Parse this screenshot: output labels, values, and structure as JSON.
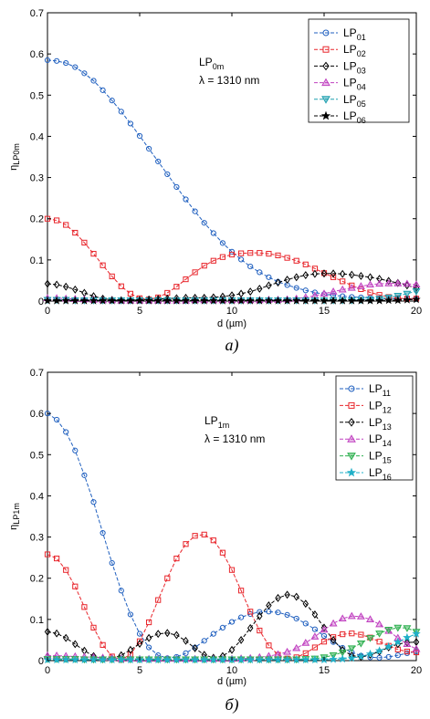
{
  "chart_data": [
    {
      "type": "line",
      "caption": "a)",
      "xlabel": "d (µm)",
      "ylabel": {
        "main": "η",
        "sub": "LP0m"
      },
      "annotation": {
        "line1_main": "LP",
        "line1_sub": "0m",
        "line2": "λ = 1310 nm"
      },
      "xlim": [
        0,
        20
      ],
      "ylim": [
        0,
        0.7
      ],
      "xticks": [
        "0",
        "5",
        "10",
        "15",
        "20"
      ],
      "yticks": [
        "0",
        "0.1",
        "0.2",
        "0.3",
        "0.4",
        "0.5",
        "0.6",
        "0.7"
      ],
      "grid": false,
      "legend_position": "top-right",
      "x": [
        0,
        0.5,
        1,
        1.5,
        2,
        2.5,
        3,
        3.5,
        4,
        4.5,
        5,
        5.5,
        6,
        6.5,
        7,
        7.5,
        8,
        8.5,
        9,
        9.5,
        10,
        10.5,
        11,
        11.5,
        12,
        12.5,
        13,
        13.5,
        14,
        14.5,
        15,
        15.5,
        16,
        16.5,
        17,
        17.5,
        18,
        18.5,
        19,
        19.5,
        20
      ],
      "series": [
        {
          "name_main": "LP",
          "name_sub": "01",
          "color": "#1f5fbf",
          "marker": "circle",
          "values": [
            0.585,
            0.583,
            0.578,
            0.568,
            0.553,
            0.535,
            0.512,
            0.487,
            0.46,
            0.431,
            0.401,
            0.37,
            0.339,
            0.308,
            0.277,
            0.247,
            0.218,
            0.19,
            0.165,
            0.141,
            0.12,
            0.101,
            0.084,
            0.07,
            0.058,
            0.047,
            0.039,
            0.032,
            0.026,
            0.021,
            0.017,
            0.014,
            0.012,
            0.01,
            0.009,
            0.008,
            0.007,
            0.006,
            0.006,
            0.005,
            0.005
          ]
        },
        {
          "name_main": "LP",
          "name_sub": "02",
          "color": "#e8252b",
          "marker": "square",
          "values": [
            0.2,
            0.196,
            0.185,
            0.166,
            0.142,
            0.115,
            0.087,
            0.06,
            0.036,
            0.018,
            0.007,
            0.004,
            0.009,
            0.02,
            0.035,
            0.053,
            0.07,
            0.086,
            0.098,
            0.107,
            0.113,
            0.116,
            0.117,
            0.117,
            0.115,
            0.111,
            0.105,
            0.098,
            0.089,
            0.079,
            0.068,
            0.058,
            0.048,
            0.038,
            0.029,
            0.021,
            0.015,
            0.01,
            0.007,
            0.006,
            0.006
          ]
        },
        {
          "name_main": "LP",
          "name_sub": "03",
          "color": "#000000",
          "marker": "diamond",
          "values": [
            0.042,
            0.04,
            0.035,
            0.028,
            0.02,
            0.012,
            0.006,
            0.003,
            0.002,
            0.002,
            0.003,
            0.004,
            0.005,
            0.006,
            0.007,
            0.008,
            0.008,
            0.008,
            0.009,
            0.011,
            0.014,
            0.018,
            0.023,
            0.03,
            0.038,
            0.045,
            0.052,
            0.058,
            0.063,
            0.066,
            0.067,
            0.067,
            0.066,
            0.064,
            0.061,
            0.058,
            0.054,
            0.049,
            0.044,
            0.038,
            0.032
          ]
        },
        {
          "name_main": "LP",
          "name_sub": "04",
          "color": "#c040c0",
          "marker": "triangle",
          "values": [
            0.007,
            0.007,
            0.006,
            0.005,
            0.004,
            0.003,
            0.002,
            0.002,
            0.001,
            0.001,
            0.001,
            0.001,
            0.001,
            0.001,
            0.001,
            0.001,
            0.002,
            0.002,
            0.002,
            0.002,
            0.002,
            0.002,
            0.002,
            0.002,
            0.003,
            0.003,
            0.004,
            0.006,
            0.009,
            0.013,
            0.018,
            0.023,
            0.028,
            0.032,
            0.036,
            0.04,
            0.042,
            0.043,
            0.043,
            0.042,
            0.04
          ]
        },
        {
          "name_main": "LP",
          "name_sub": "05",
          "color": "#1fa0b0",
          "marker": "triangle-down",
          "values": [
            0.003,
            0.003,
            0.003,
            0.002,
            0.002,
            0.002,
            0.002,
            0.002,
            0.002,
            0.002,
            0.002,
            0.002,
            0.002,
            0.002,
            0.002,
            0.002,
            0.002,
            0.002,
            0.002,
            0.002,
            0.002,
            0.002,
            0.002,
            0.002,
            0.002,
            0.002,
            0.002,
            0.002,
            0.002,
            0.002,
            0.002,
            0.002,
            0.002,
            0.002,
            0.003,
            0.004,
            0.006,
            0.009,
            0.013,
            0.018,
            0.024
          ]
        },
        {
          "name_main": "LP",
          "name_sub": "06",
          "color": "#000000",
          "marker": "star",
          "values": [
            0.001,
            0.001,
            0.001,
            0.001,
            0.001,
            0.001,
            0.001,
            0.001,
            0.001,
            0.001,
            0.001,
            0.001,
            0.001,
            0.001,
            0.001,
            0.001,
            0.001,
            0.001,
            0.001,
            0.001,
            0.001,
            0.001,
            0.001,
            0.001,
            0.001,
            0.001,
            0.001,
            0.001,
            0.001,
            0.001,
            0.001,
            0.001,
            0.001,
            0.001,
            0.001,
            0.001,
            0.001,
            0.002,
            0.002,
            0.003,
            0.004
          ]
        }
      ]
    },
    {
      "type": "line",
      "caption": "б)",
      "xlabel": "d (µm)",
      "ylabel": {
        "main": "η",
        "sub": "LP1m"
      },
      "annotation": {
        "line1_main": "LP",
        "line1_sub": "1m",
        "line2": "λ = 1310 nm"
      },
      "xlim": [
        0,
        20
      ],
      "ylim": [
        0,
        0.7
      ],
      "xticks": [
        "0",
        "5",
        "10",
        "15",
        "20"
      ],
      "yticks": [
        "0",
        "0.1",
        "0.2",
        "0.3",
        "0.4",
        "0.5",
        "0.6",
        "0.7"
      ],
      "grid": false,
      "legend_position": "top-right",
      "x": [
        0,
        0.5,
        1,
        1.5,
        2,
        2.5,
        3,
        3.5,
        4,
        4.5,
        5,
        5.5,
        6,
        6.5,
        7,
        7.5,
        8,
        8.5,
        9,
        9.5,
        10,
        10.5,
        11,
        11.5,
        12,
        12.5,
        13,
        13.5,
        14,
        14.5,
        15,
        15.5,
        16,
        16.5,
        17,
        17.5,
        18,
        18.5,
        19,
        19.5,
        20
      ],
      "series": [
        {
          "name_main": "LP",
          "name_sub": "11",
          "color": "#1f5fbf",
          "marker": "circle",
          "values": [
            0.6,
            0.585,
            0.555,
            0.51,
            0.45,
            0.385,
            0.31,
            0.237,
            0.17,
            0.112,
            0.065,
            0.032,
            0.013,
            0.006,
            0.009,
            0.018,
            0.032,
            0.048,
            0.065,
            0.08,
            0.094,
            0.105,
            0.113,
            0.118,
            0.119,
            0.117,
            0.111,
            0.102,
            0.09,
            0.076,
            0.06,
            0.045,
            0.031,
            0.02,
            0.012,
            0.008,
            0.007,
            0.009,
            0.013,
            0.018,
            0.022
          ]
        },
        {
          "name_main": "LP",
          "name_sub": "12",
          "color": "#e8252b",
          "marker": "square",
          "values": [
            0.258,
            0.248,
            0.22,
            0.18,
            0.13,
            0.08,
            0.038,
            0.01,
            0.002,
            0.015,
            0.047,
            0.093,
            0.147,
            0.2,
            0.248,
            0.283,
            0.303,
            0.306,
            0.292,
            0.262,
            0.22,
            0.17,
            0.119,
            0.073,
            0.037,
            0.014,
            0.005,
            0.008,
            0.018,
            0.032,
            0.046,
            0.057,
            0.064,
            0.066,
            0.063,
            0.056,
            0.046,
            0.036,
            0.027,
            0.022,
            0.02
          ]
        },
        {
          "name_main": "LP",
          "name_sub": "13",
          "color": "#000000",
          "marker": "diamond",
          "values": [
            0.07,
            0.066,
            0.055,
            0.04,
            0.024,
            0.011,
            0.004,
            0.005,
            0.013,
            0.026,
            0.041,
            0.055,
            0.065,
            0.067,
            0.062,
            0.048,
            0.03,
            0.014,
            0.007,
            0.011,
            0.026,
            0.05,
            0.079,
            0.108,
            0.134,
            0.152,
            0.16,
            0.155,
            0.138,
            0.112,
            0.08,
            0.05,
            0.026,
            0.012,
            0.009,
            0.014,
            0.022,
            0.032,
            0.04,
            0.044,
            0.045
          ]
        },
        {
          "name_main": "LP",
          "name_sub": "14",
          "color": "#c040c0",
          "marker": "triangle",
          "values": [
            0.012,
            0.012,
            0.011,
            0.01,
            0.009,
            0.008,
            0.007,
            0.006,
            0.005,
            0.005,
            0.004,
            0.004,
            0.004,
            0.004,
            0.004,
            0.004,
            0.004,
            0.004,
            0.004,
            0.004,
            0.004,
            0.005,
            0.006,
            0.008,
            0.011,
            0.015,
            0.021,
            0.03,
            0.043,
            0.058,
            0.075,
            0.09,
            0.102,
            0.108,
            0.107,
            0.1,
            0.088,
            0.072,
            0.055,
            0.04,
            0.028
          ]
        },
        {
          "name_main": "LP",
          "name_sub": "15",
          "color": "#2fb050",
          "marker": "triangle-down",
          "values": [
            0.004,
            0.004,
            0.004,
            0.004,
            0.003,
            0.003,
            0.003,
            0.003,
            0.003,
            0.003,
            0.003,
            0.003,
            0.003,
            0.003,
            0.003,
            0.003,
            0.003,
            0.003,
            0.003,
            0.003,
            0.003,
            0.003,
            0.003,
            0.003,
            0.003,
            0.003,
            0.003,
            0.003,
            0.004,
            0.005,
            0.008,
            0.013,
            0.02,
            0.03,
            0.042,
            0.055,
            0.066,
            0.075,
            0.08,
            0.079,
            0.07
          ]
        },
        {
          "name_main": "LP",
          "name_sub": "16",
          "color": "#20b0c8",
          "marker": "star",
          "values": [
            0.002,
            0.002,
            0.002,
            0.002,
            0.002,
            0.002,
            0.002,
            0.002,
            0.002,
            0.002,
            0.002,
            0.002,
            0.002,
            0.002,
            0.002,
            0.002,
            0.002,
            0.002,
            0.002,
            0.002,
            0.002,
            0.002,
            0.002,
            0.002,
            0.002,
            0.002,
            0.002,
            0.002,
            0.002,
            0.002,
            0.002,
            0.003,
            0.004,
            0.006,
            0.01,
            0.016,
            0.024,
            0.034,
            0.045,
            0.056,
            0.065
          ]
        }
      ]
    }
  ]
}
